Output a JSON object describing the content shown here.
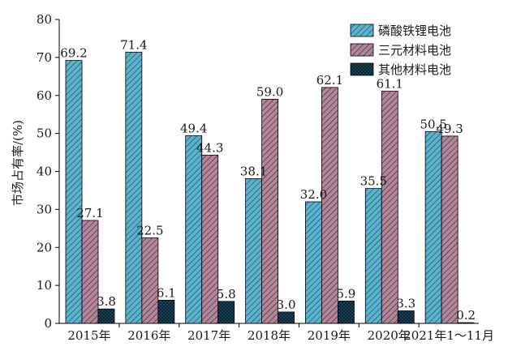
{
  "chart_data": {
    "type": "bar",
    "ylabel": "市场占有率/(%)",
    "ylim": [
      0,
      80
    ],
    "yticks": [
      0,
      10,
      20,
      30,
      40,
      50,
      60,
      70,
      80
    ],
    "categories": [
      "2015年",
      "2016年",
      "2017年",
      "2018年",
      "2019年",
      "2020年",
      "2021年1～11月"
    ],
    "series": [
      {
        "name": "磷酸铁锂电池",
        "values": [
          69.2,
          71.4,
          49.4,
          38.1,
          32.0,
          35.5,
          50.5
        ],
        "labels": [
          "69.2",
          "71.4",
          "49.4",
          "38.1",
          "32.0",
          "35.5",
          "50.5"
        ],
        "color": "#5bb4cf",
        "pattern": "hatch-light"
      },
      {
        "name": "三元材料电池",
        "values": [
          27.1,
          22.5,
          44.3,
          59.0,
          62.1,
          61.1,
          49.3
        ],
        "labels": [
          "27.1",
          "22.5",
          "44.3",
          "59.0",
          "62.1",
          "61.1",
          "49.3"
        ],
        "color": "#b4869c",
        "pattern": "hatch-dark"
      },
      {
        "name": "其他材料电池",
        "values": [
          3.8,
          6.1,
          5.8,
          3.0,
          5.9,
          3.3,
          0.2
        ],
        "labels": [
          "3.8",
          "6.1",
          "5.8",
          "3.0",
          "5.9",
          "3.3",
          "0.2"
        ],
        "color": "#1e4a66",
        "pattern": "crosshatch"
      }
    ],
    "legend_position": "top-right",
    "grid": false
  }
}
